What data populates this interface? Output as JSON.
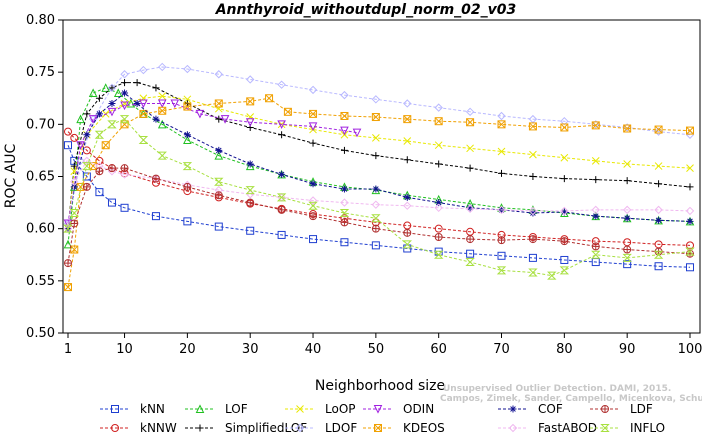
{
  "chart_data": {
    "type": "line",
    "title": "Annthyroid_withoutdupl_norm_02_v03",
    "xlabel": "Neighborhood size",
    "ylabel": "ROC AUC",
    "xlim": [
      0,
      100
    ],
    "ylim": [
      0.5,
      0.8
    ],
    "x_ticks": [
      1,
      10,
      20,
      30,
      40,
      50,
      60,
      70,
      80,
      90,
      100
    ],
    "y_ticks": [
      "0.50",
      "0.55",
      "0.60",
      "0.65",
      "0.70",
      "0.75",
      "0.80"
    ],
    "grid": false,
    "legend_position": "bottom",
    "credit": {
      "line1": "Unsupervised Outlier Detection. DAMI, 2015.",
      "line2": "Campos, Zimek, Sander, Campello, Micenkova, Schubert, Assent, Houle"
    },
    "series": [
      {
        "name": "kNN",
        "color": "#1f3fd0",
        "marker": "square",
        "points": [
          [
            1,
            0.68
          ],
          [
            2,
            0.665
          ],
          [
            4,
            0.65
          ],
          [
            6,
            0.635
          ],
          [
            8,
            0.625
          ],
          [
            10,
            0.62
          ],
          [
            15,
            0.612
          ],
          [
            20,
            0.607
          ],
          [
            25,
            0.602
          ],
          [
            30,
            0.598
          ],
          [
            35,
            0.594
          ],
          [
            40,
            0.59
          ],
          [
            45,
            0.587
          ],
          [
            50,
            0.584
          ],
          [
            55,
            0.581
          ],
          [
            60,
            0.578
          ],
          [
            65,
            0.576
          ],
          [
            70,
            0.574
          ],
          [
            75,
            0.572
          ],
          [
            80,
            0.57
          ],
          [
            85,
            0.568
          ],
          [
            90,
            0.566
          ],
          [
            95,
            0.564
          ],
          [
            100,
            0.563
          ]
        ]
      },
      {
        "name": "kNNW",
        "color": "#d02020",
        "marker": "circle",
        "points": [
          [
            1,
            0.693
          ],
          [
            2,
            0.687
          ],
          [
            4,
            0.675
          ],
          [
            6,
            0.665
          ],
          [
            8,
            0.658
          ],
          [
            10,
            0.653
          ],
          [
            15,
            0.644
          ],
          [
            20,
            0.636
          ],
          [
            25,
            0.63
          ],
          [
            30,
            0.624
          ],
          [
            35,
            0.619
          ],
          [
            40,
            0.614
          ],
          [
            45,
            0.61
          ],
          [
            50,
            0.606
          ],
          [
            55,
            0.603
          ],
          [
            60,
            0.6
          ],
          [
            65,
            0.597
          ],
          [
            70,
            0.594
          ],
          [
            75,
            0.592
          ],
          [
            80,
            0.59
          ],
          [
            85,
            0.588
          ],
          [
            90,
            0.587
          ],
          [
            95,
            0.585
          ],
          [
            100,
            0.584
          ]
        ]
      },
      {
        "name": "LOF",
        "color": "#20c020",
        "marker": "triangle",
        "points": [
          [
            1,
            0.585
          ],
          [
            2,
            0.64
          ],
          [
            3,
            0.705
          ],
          [
            5,
            0.73
          ],
          [
            7,
            0.735
          ],
          [
            9,
            0.73
          ],
          [
            11,
            0.72
          ],
          [
            13,
            0.71
          ],
          [
            16,
            0.7
          ],
          [
            20,
            0.685
          ],
          [
            25,
            0.67
          ],
          [
            30,
            0.66
          ],
          [
            35,
            0.652
          ],
          [
            40,
            0.645
          ],
          [
            45,
            0.64
          ],
          [
            50,
            0.637
          ],
          [
            55,
            0.632
          ],
          [
            60,
            0.628
          ],
          [
            65,
            0.624
          ],
          [
            70,
            0.62
          ],
          [
            75,
            0.618
          ],
          [
            80,
            0.615
          ],
          [
            85,
            0.612
          ],
          [
            90,
            0.61
          ],
          [
            95,
            0.608
          ],
          [
            100,
            0.607
          ]
        ]
      },
      {
        "name": "SimplifiedLOF",
        "color": "#000000",
        "marker": "plus",
        "points": [
          [
            1,
            0.6
          ],
          [
            2,
            0.66
          ],
          [
            4,
            0.71
          ],
          [
            6,
            0.725
          ],
          [
            8,
            0.735
          ],
          [
            10,
            0.74
          ],
          [
            12,
            0.74
          ],
          [
            15,
            0.735
          ],
          [
            20,
            0.72
          ],
          [
            25,
            0.705
          ],
          [
            30,
            0.697
          ],
          [
            35,
            0.69
          ],
          [
            40,
            0.682
          ],
          [
            45,
            0.675
          ],
          [
            50,
            0.67
          ],
          [
            55,
            0.666
          ],
          [
            60,
            0.662
          ],
          [
            65,
            0.658
          ],
          [
            70,
            0.653
          ],
          [
            75,
            0.65
          ],
          [
            80,
            0.648
          ],
          [
            85,
            0.647
          ],
          [
            90,
            0.646
          ],
          [
            95,
            0.643
          ],
          [
            100,
            0.64
          ]
        ]
      },
      {
        "name": "LoOP",
        "color": "#e8e800",
        "marker": "x",
        "points": [
          [
            1,
            0.6
          ],
          [
            2,
            0.655
          ],
          [
            4,
            0.69
          ],
          [
            7,
            0.71
          ],
          [
            10,
            0.72
          ],
          [
            13,
            0.725
          ],
          [
            16,
            0.727
          ],
          [
            20,
            0.724
          ],
          [
            25,
            0.715
          ],
          [
            30,
            0.707
          ],
          [
            35,
            0.7
          ],
          [
            40,
            0.695
          ],
          [
            45,
            0.69
          ],
          [
            50,
            0.687
          ],
          [
            55,
            0.684
          ],
          [
            60,
            0.68
          ],
          [
            65,
            0.677
          ],
          [
            70,
            0.674
          ],
          [
            75,
            0.671
          ],
          [
            80,
            0.668
          ],
          [
            85,
            0.665
          ],
          [
            90,
            0.662
          ],
          [
            95,
            0.66
          ],
          [
            100,
            0.658
          ]
        ]
      },
      {
        "name": "LDOF",
        "color": "#b8b8ff",
        "marker": "diamond",
        "points": [
          [
            1,
            0.605
          ],
          [
            3,
            0.665
          ],
          [
            5,
            0.705
          ],
          [
            8,
            0.735
          ],
          [
            10,
            0.748
          ],
          [
            13,
            0.752
          ],
          [
            16,
            0.755
          ],
          [
            20,
            0.753
          ],
          [
            25,
            0.748
          ],
          [
            30,
            0.743
          ],
          [
            35,
            0.738
          ],
          [
            40,
            0.733
          ],
          [
            45,
            0.728
          ],
          [
            50,
            0.724
          ],
          [
            55,
            0.72
          ],
          [
            60,
            0.716
          ],
          [
            65,
            0.712
          ],
          [
            70,
            0.708
          ],
          [
            75,
            0.705
          ],
          [
            80,
            0.703
          ],
          [
            85,
            0.7
          ],
          [
            90,
            0.697
          ],
          [
            95,
            0.693
          ],
          [
            100,
            0.69
          ]
        ]
      },
      {
        "name": "ODIN",
        "color": "#a020e0",
        "marker": "triangle-down",
        "points": [
          [
            1,
            0.605
          ],
          [
            3,
            0.68
          ],
          [
            5,
            0.705
          ],
          [
            8,
            0.712
          ],
          [
            10,
            0.718
          ],
          [
            13,
            0.72
          ],
          [
            16,
            0.72
          ],
          [
            18,
            0.72
          ],
          [
            22,
            0.71
          ],
          [
            26,
            0.705
          ],
          [
            30,
            0.702
          ],
          [
            35,
            0.7
          ],
          [
            40,
            0.698
          ],
          [
            45,
            0.694
          ],
          [
            47,
            0.692
          ]
        ]
      },
      {
        "name": "KDEOS",
        "color": "#f0a000",
        "marker": "square-x",
        "points": [
          [
            1,
            0.544
          ],
          [
            2,
            0.58
          ],
          [
            3,
            0.64
          ],
          [
            5,
            0.66
          ],
          [
            7,
            0.68
          ],
          [
            10,
            0.7
          ],
          [
            13,
            0.71
          ],
          [
            16,
            0.713
          ],
          [
            20,
            0.717
          ],
          [
            25,
            0.72
          ],
          [
            30,
            0.722
          ],
          [
            33,
            0.725
          ],
          [
            36,
            0.712
          ],
          [
            40,
            0.71
          ],
          [
            45,
            0.708
          ],
          [
            50,
            0.707
          ],
          [
            55,
            0.705
          ],
          [
            60,
            0.703
          ],
          [
            65,
            0.702
          ],
          [
            70,
            0.7
          ],
          [
            75,
            0.698
          ],
          [
            80,
            0.697
          ],
          [
            85,
            0.699
          ],
          [
            90,
            0.696
          ],
          [
            95,
            0.695
          ],
          [
            100,
            0.694
          ]
        ]
      },
      {
        "name": "COF",
        "color": "#101090",
        "marker": "asterisk",
        "points": [
          [
            1,
            0.6
          ],
          [
            2,
            0.64
          ],
          [
            4,
            0.69
          ],
          [
            6,
            0.71
          ],
          [
            8,
            0.72
          ],
          [
            10,
            0.73
          ],
          [
            12,
            0.72
          ],
          [
            15,
            0.705
          ],
          [
            20,
            0.69
          ],
          [
            25,
            0.675
          ],
          [
            30,
            0.662
          ],
          [
            35,
            0.652
          ],
          [
            40,
            0.643
          ],
          [
            45,
            0.638
          ],
          [
            50,
            0.638
          ],
          [
            55,
            0.63
          ],
          [
            60,
            0.625
          ],
          [
            65,
            0.62
          ],
          [
            70,
            0.618
          ],
          [
            75,
            0.615
          ],
          [
            80,
            0.616
          ],
          [
            85,
            0.612
          ],
          [
            90,
            0.61
          ],
          [
            95,
            0.608
          ],
          [
            100,
            0.607
          ]
        ]
      },
      {
        "name": "FastABOD",
        "color": "#f0b8f0",
        "marker": "diamond",
        "points": [
          [
            1,
            0.6
          ],
          [
            2,
            0.645
          ],
          [
            4,
            0.665
          ],
          [
            6,
            0.66
          ],
          [
            8,
            0.655
          ],
          [
            10,
            0.652
          ],
          [
            15,
            0.648
          ],
          [
            20,
            0.642
          ],
          [
            25,
            0.637
          ],
          [
            30,
            0.633
          ],
          [
            35,
            0.63
          ],
          [
            40,
            0.627
          ],
          [
            45,
            0.625
          ],
          [
            50,
            0.623
          ],
          [
            55,
            0.622
          ],
          [
            60,
            0.62
          ],
          [
            65,
            0.619
          ],
          [
            70,
            0.618
          ],
          [
            75,
            0.617
          ],
          [
            80,
            0.617
          ],
          [
            85,
            0.618
          ],
          [
            90,
            0.618
          ],
          [
            95,
            0.618
          ],
          [
            100,
            0.617
          ]
        ]
      },
      {
        "name": "LDF",
        "color": "#b03030",
        "marker": "circle-plus",
        "points": [
          [
            1,
            0.567
          ],
          [
            2,
            0.605
          ],
          [
            4,
            0.64
          ],
          [
            6,
            0.655
          ],
          [
            8,
            0.658
          ],
          [
            10,
            0.658
          ],
          [
            15,
            0.648
          ],
          [
            20,
            0.64
          ],
          [
            25,
            0.632
          ],
          [
            30,
            0.625
          ],
          [
            35,
            0.618
          ],
          [
            40,
            0.612
          ],
          [
            45,
            0.606
          ],
          [
            50,
            0.6
          ],
          [
            55,
            0.596
          ],
          [
            60,
            0.592
          ],
          [
            65,
            0.59
          ],
          [
            70,
            0.589
          ],
          [
            75,
            0.59
          ],
          [
            80,
            0.588
          ],
          [
            85,
            0.583
          ],
          [
            90,
            0.58
          ],
          [
            95,
            0.578
          ],
          [
            100,
            0.576
          ]
        ]
      },
      {
        "name": "INFLO",
        "color": "#a8e040",
        "marker": "hourglass",
        "points": [
          [
            1,
            0.6
          ],
          [
            2,
            0.615
          ],
          [
            4,
            0.66
          ],
          [
            6,
            0.69
          ],
          [
            8,
            0.7
          ],
          [
            10,
            0.705
          ],
          [
            13,
            0.685
          ],
          [
            16,
            0.67
          ],
          [
            20,
            0.66
          ],
          [
            25,
            0.645
          ],
          [
            30,
            0.637
          ],
          [
            35,
            0.63
          ],
          [
            40,
            0.622
          ],
          [
            45,
            0.615
          ],
          [
            50,
            0.61
          ],
          [
            55,
            0.585
          ],
          [
            60,
            0.575
          ],
          [
            65,
            0.568
          ],
          [
            70,
            0.56
          ],
          [
            75,
            0.558
          ],
          [
            78,
            0.555
          ],
          [
            80,
            0.56
          ],
          [
            85,
            0.575
          ],
          [
            90,
            0.572
          ],
          [
            95,
            0.575
          ],
          [
            100,
            0.578
          ]
        ]
      }
    ]
  }
}
